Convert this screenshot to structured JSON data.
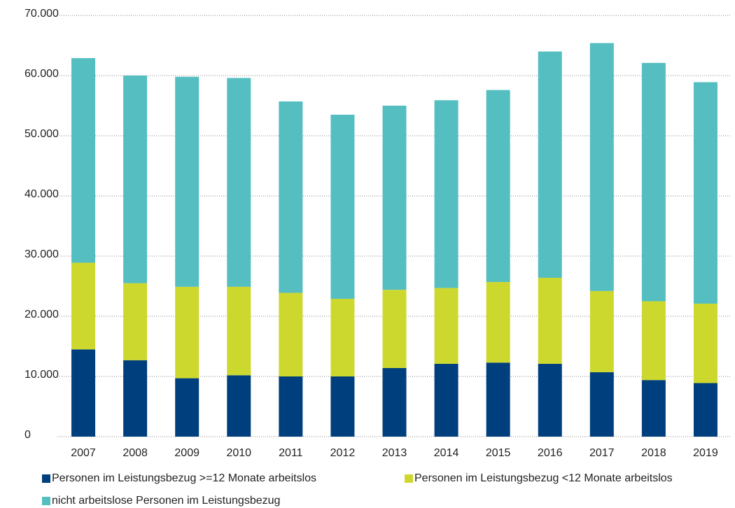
{
  "chart_data": {
    "type": "stacked-bar",
    "categories": [
      "2007",
      "2008",
      "2009",
      "2010",
      "2011",
      "2012",
      "2013",
      "2014",
      "2015",
      "2016",
      "2017",
      "2018",
      "2019"
    ],
    "series": [
      {
        "name": "Personen im Leistungsbezug >=12 Monate arbeitslos",
        "color": "#003f7d",
        "values": [
          14500,
          12700,
          9700,
          10200,
          10000,
          10000,
          11400,
          12100,
          12300,
          12100,
          10700,
          9400,
          8900
        ]
      },
      {
        "name": "Personen im Leistungsbezug <12 Monate arbeitslos",
        "color": "#cdd82e",
        "values": [
          14400,
          12800,
          15200,
          14700,
          13900,
          12900,
          13000,
          12600,
          13400,
          14300,
          13500,
          13100,
          13200
        ]
      },
      {
        "name": "nicht arbeitslose Personen im Leistungsbezug",
        "color": "#54bec0",
        "values": [
          34000,
          34500,
          34900,
          34700,
          31800,
          30600,
          30600,
          31200,
          31900,
          37600,
          41200,
          39600,
          36800
        ]
      }
    ],
    "ylim": [
      0,
      70000
    ],
    "yticks": [
      0,
      {
        "value": 10000,
        "label": "10.000"
      },
      {
        "value": 20000,
        "label": "20.000"
      },
      {
        "value": 30000,
        "label": "30.000"
      },
      {
        "value": 40000,
        "label": "40.000"
      },
      {
        "value": 50000,
        "label": "50.000"
      },
      {
        "value": 60000,
        "label": "60.000"
      },
      {
        "value": 70000,
        "label": "70.000"
      }
    ],
    "grid": true
  }
}
